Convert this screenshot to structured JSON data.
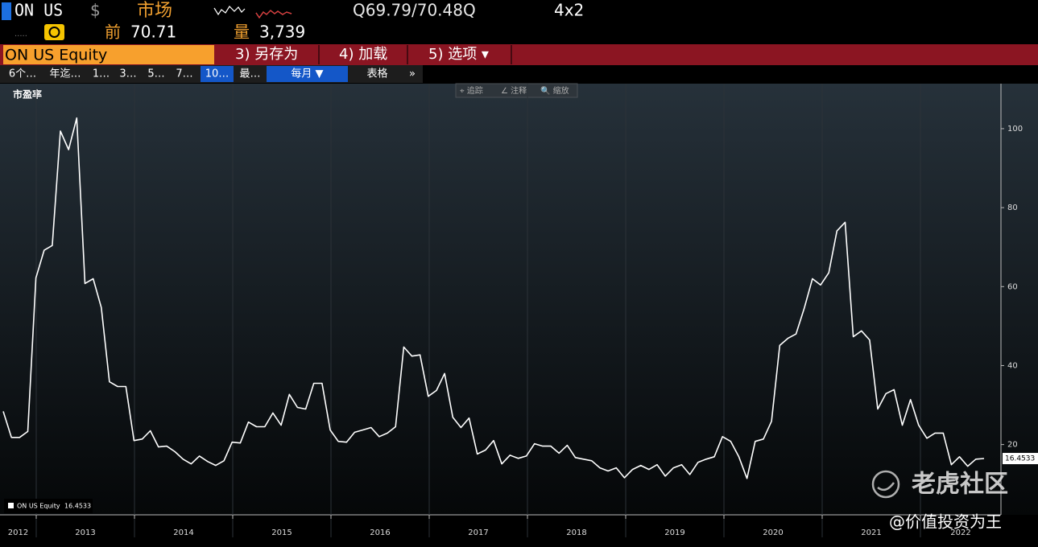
{
  "header": {
    "ticker": "ON US",
    "currency": "$",
    "market": "市场",
    "quote": "Q69.79/70.48Q",
    "layout": "4x2",
    "prev_label": "前",
    "prev_value": "70.71",
    "volume_label": "量",
    "volume_value": "3,739"
  },
  "menu": {
    "security": "ON US Equity",
    "items": [
      "3) 另存为",
      "4) 加载",
      "5) 选项 ▾"
    ]
  },
  "tabs": [
    "6个…",
    "年迄…",
    "1…",
    "3…",
    "5…",
    "7…",
    "10…",
    "最…",
    "每月 ▼",
    "表格",
    "»"
  ],
  "toolbar": [
    "⌖ 追踪",
    "∠ 注释",
    "🔍 缩放"
  ],
  "watermark": {
    "brand": "老虎社区",
    "author": "@价值投资为王"
  },
  "chart_data": {
    "type": "line",
    "title": "市盈率",
    "legend": "ON US Equity",
    "color": "#ffffff",
    "values": [
      28.4,
      21.8,
      21.8,
      23.3,
      62.2,
      69.2,
      70.4,
      99.4,
      94.7,
      102.7,
      60.8,
      62.0,
      54.7,
      35.9,
      34.7,
      34.7,
      21.0,
      21.4,
      23.5,
      19.4,
      19.6,
      18.2,
      16.3,
      15.1,
      17.1,
      15.7,
      14.7,
      15.9,
      20.6,
      20.4,
      25.7,
      24.5,
      24.5,
      28.0,
      24.9,
      32.7,
      29.4,
      29.0,
      35.5,
      35.5,
      23.7,
      20.8,
      20.6,
      23.1,
      23.7,
      24.3,
      22.0,
      22.9,
      24.5,
      44.7,
      42.4,
      42.7,
      32.2,
      33.7,
      38.0,
      26.9,
      24.3,
      26.7,
      17.6,
      18.6,
      21.0,
      15.1,
      17.3,
      16.5,
      17.1,
      20.2,
      19.6,
      19.6,
      17.8,
      19.8,
      16.7,
      16.3,
      15.9,
      14.1,
      13.3,
      14.1,
      11.6,
      13.7,
      14.7,
      13.7,
      14.9,
      12.0,
      14.1,
      14.9,
      12.4,
      15.5,
      16.3,
      16.9,
      22.0,
      20.8,
      16.9,
      11.4,
      20.8,
      21.4,
      25.9,
      45.1,
      46.9,
      48.0,
      54.5,
      62.0,
      60.4,
      63.5,
      74.1,
      76.3,
      47.3,
      48.8,
      46.5,
      29.0,
      32.9,
      33.9,
      24.9,
      31.4,
      24.9,
      21.6,
      22.9,
      22.9,
      14.9,
      16.9,
      14.5,
      16.3,
      16.4533
    ],
    "ylim": [
      2.2,
      111.4
    ],
    "yticks": [
      20,
      40,
      60,
      80,
      100
    ],
    "xticks": [
      2012,
      2013,
      2014,
      2015,
      2016,
      2017,
      2018,
      2019,
      2020,
      2021,
      2022
    ],
    "grid": false
  }
}
